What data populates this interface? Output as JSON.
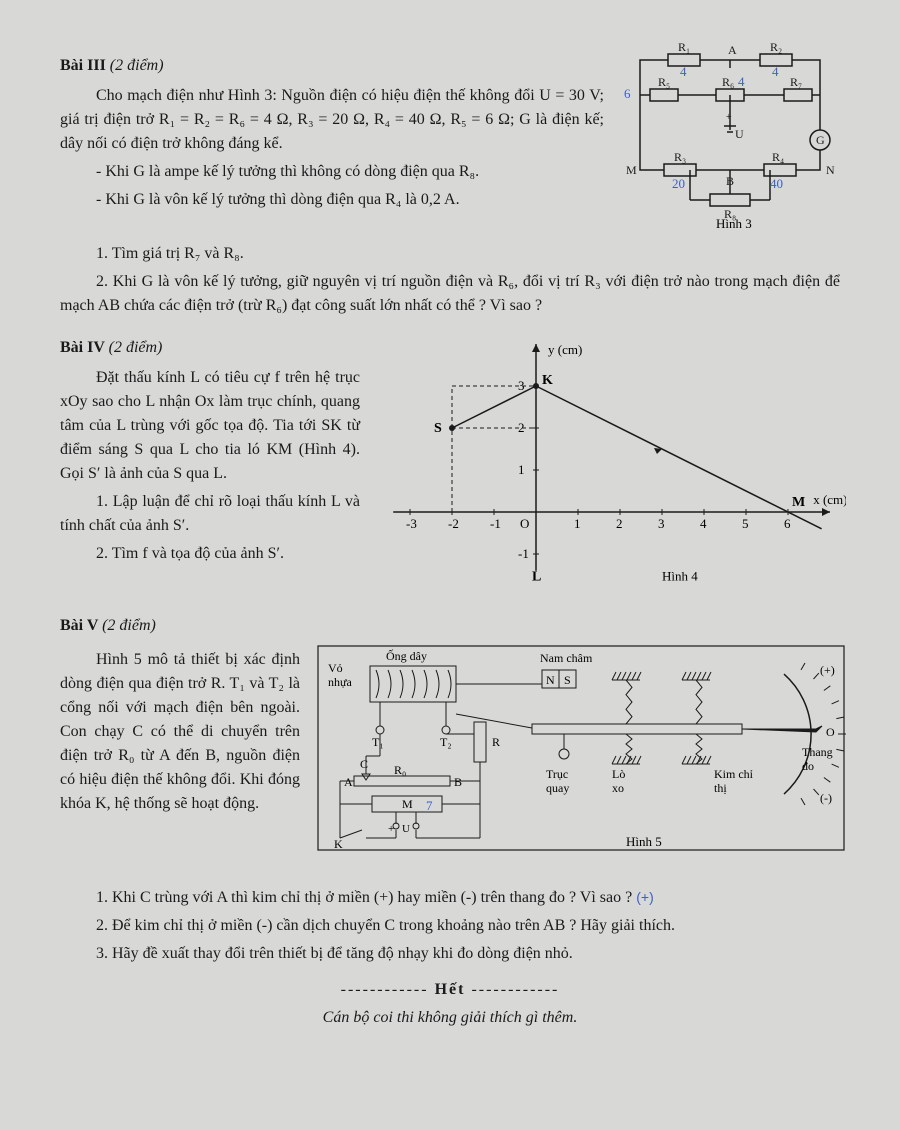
{
  "bai3": {
    "title": "Bài III",
    "points": "(2 điểm)",
    "p1": "Cho mạch điện như Hình 3: Nguồn điện có hiệu điện thế không đổi U = 30 V; giá trị điện trở R₁ = R₂ = R₆ = 4 Ω, R₃ = 20 Ω, R₄ = 40 Ω, R₅ = 6 Ω; G là điện kế; dây nối có điện trở không đáng kể.",
    "p2": "- Khi G là ampe kế lý tưởng thì không có dòng điện qua R₈.",
    "p3": "- Khi G là vôn kế lý tưởng thì dòng điện qua R₄ là 0,2 A.",
    "p4": "1. Tìm giá trị R₇ và R₈.",
    "p5": "2. Khi G là vôn kế lý tưởng, giữ nguyên vị trí nguồn điện và R₆, đổi vị trí R₃ với điện trở nào trong mạch điện để mạch AB chứa các điện trở (trừ R₆) đạt công suất lớn nhất có thể ? Vì sao ?",
    "circuit": {
      "labels": {
        "R1": "R₁",
        "R2": "R₂",
        "R3": "R₃",
        "R4": "R₄",
        "R5": "R₅",
        "R6": "R₆",
        "R7": "R₇",
        "R8": "R₈",
        "A": "A",
        "B": "B",
        "M": "M",
        "N": "N",
        "U": "U",
        "G": "G",
        "cap": "Hình 3",
        "handnote4a": "4",
        "handnote4b": "4",
        "handnote4c": "4",
        "handnote6": "6",
        "handnote20": "20",
        "handnote40": "40"
      },
      "colors": {
        "handwrite": "#3a5fcd",
        "stroke": "#1a1a1a"
      }
    }
  },
  "bai4": {
    "title": "Bài IV",
    "points": "(2 điểm)",
    "p1": "Đặt thấu kính L có tiêu cự f trên hệ trục xOy sao cho L nhận Ox làm trục chính, quang tâm của L trùng với gốc tọa độ. Tia tới SK từ điểm sáng S qua L cho tia ló KM (Hình 4). Gọi S′ là ảnh của S qua L.",
    "p2": "1. Lập luận để chỉ rõ loại thấu kính L và tính chất của ảnh S′.",
    "p3": "2. Tìm f và tọa độ của ảnh S′.",
    "chart": {
      "xlabel": "x (cm)",
      "ylabel": "y (cm)",
      "xticks": [
        -3,
        -2,
        -1,
        0,
        1,
        2,
        3,
        4,
        5,
        6
      ],
      "yticks": [
        -1,
        1,
        2,
        3
      ],
      "S": [
        -2,
        2
      ],
      "K": [
        0,
        3
      ],
      "M": [
        6,
        0
      ],
      "Slabel": "S",
      "Klabel": "K",
      "Mlabel": "M",
      "Olabel": "O",
      "Llabel": "L",
      "cap": "Hình 4",
      "stroke": "#1a1a1a"
    }
  },
  "bai5": {
    "title": "Bài V",
    "points": "(2 điểm)",
    "p1": "Hình 5 mô tả thiết bị xác định dòng điện qua điện trở R. T₁ và T₂ là cổng nối với mạch điện bên ngoài. Con chạy C có thể di chuyển trên điện trở R₀ từ A đến B, nguồn điện có hiệu điện thế không đổi. Khi đóng khóa K, hệ thống sẽ hoạt động.",
    "q1": "1. Khi C trùng với A thì kim chỉ thị ở miền (+) hay miền (-)  trên thang đo ? Vì sao ?",
    "q1hand": "(+)",
    "q2": "2. Để kim chỉ thị ở miền (-) cần dịch chuyển C trong khoảng nào trên AB ? Hãy giải thích.",
    "q3": "3. Hãy đề xuất thay đổi trên thiết bị để tăng độ nhạy khi đo dòng điện nhỏ.",
    "diagram": {
      "labels": {
        "ongday": "Ống dây",
        "namcham": "Nam châm",
        "vonhua": "Vỏ nhựa",
        "T1": "T₁",
        "T2": "T₂",
        "R": "R",
        "R0": "R₀",
        "A": "A",
        "B": "B",
        "C": "C",
        "M": "M",
        "U": "U",
        "K": "K",
        "N": "N",
        "S": "S",
        "trucquay": "Trục quay",
        "loxo": "Lò xo",
        "kimchithi": "Kim chỉ thị",
        "thangdo": "Thang đo",
        "plus": "(+)",
        "minus": "(-)",
        "zero": "O",
        "cap": "Hình 5",
        "handnote7": "7"
      },
      "stroke": "#1a1a1a",
      "handwrite": "#3a5fcd"
    }
  },
  "footer": {
    "dashL": "------------",
    "het": " Hết ",
    "dashR": "------------",
    "note": "Cán bộ coi thi không giải thích gì thêm."
  }
}
